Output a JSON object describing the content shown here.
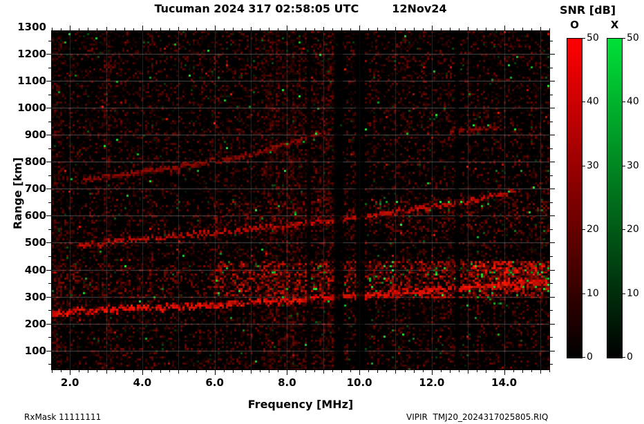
{
  "header": {
    "title_left": "Tucuman 2024 317 02:58:05 UTC",
    "title_right": "12Nov24"
  },
  "footer": {
    "left": "RxMask 11111111",
    "right": "VIPIR  TMJ20_2024317025805.RIQ"
  },
  "colorbars": {
    "title": "SNR [dB]",
    "ticks": [
      0,
      10,
      20,
      30,
      40,
      50
    ],
    "bars": [
      {
        "label": "O",
        "top_color": "#ff0000"
      },
      {
        "label": "X",
        "top_color": "#00e038"
      }
    ]
  },
  "chart_data": {
    "type": "heatmap",
    "title": "Tucuman 2024 317 02:58:05 UTC 12Nov24",
    "xlabel": "Frequency [MHz]",
    "ylabel": "Range [km]",
    "xlim": [
      1.5,
      15.25
    ],
    "ylim": [
      30,
      1285
    ],
    "x_major_ticks": [
      2,
      4,
      6,
      8,
      10,
      12,
      14
    ],
    "x_major_labels": [
      "2.0",
      "4.0",
      "6.0",
      "8.0",
      "10.0",
      "12.0",
      "14.0"
    ],
    "x_minor_step": 0.25,
    "y_major_ticks": [
      100,
      200,
      300,
      400,
      500,
      600,
      700,
      800,
      900,
      1000,
      1100,
      1200,
      1300
    ],
    "y_minor_step": 50,
    "snr_range": [
      0,
      50
    ],
    "background": "#000000",
    "grid": {
      "h_every": 100,
      "v_every": 1,
      "h_color": "rgba(215,215,215,0.35)",
      "v_color": "rgba(215,215,215,0.18)"
    },
    "noise": {
      "seed": 20241112,
      "cell": 3,
      "base_density": 0.3,
      "green_fraction": 0.035,
      "bright_dot_fraction": 0.004
    },
    "bright_columns": [
      [
        1.5,
        1.75
      ],
      [
        2.9,
        3.05
      ],
      [
        7.3,
        9.3
      ]
    ],
    "dark_columns": [
      [
        9.3,
        9.55
      ],
      [
        9.9,
        10.15
      ],
      [
        8.55,
        8.65
      ],
      [
        12.65,
        12.75
      ]
    ],
    "bands": [
      {
        "name": "f-spread-low-freq",
        "f": [
          1.6,
          6.0
        ],
        "range": [
          300,
          410
        ],
        "density": 0.15,
        "max_red": 110,
        "green_p": 0.012
      },
      {
        "name": "f-spread-high-freq",
        "f": [
          6.0,
          15.25
        ],
        "range": [
          300,
          428
        ],
        "density": 0.34,
        "max_red": 190,
        "green_p": 0.04
      },
      {
        "name": "second-hop-spread",
        "f": [
          6.0,
          15.25
        ],
        "range": [
          545,
          648
        ],
        "density": 0.14,
        "max_red": 115,
        "green_p": 0.025
      },
      {
        "name": "right-edge-strong-patch",
        "f": [
          13.1,
          15.25
        ],
        "range": [
          330,
          425
        ],
        "density": 0.5,
        "max_red": 255,
        "green_p": 0.1
      }
    ],
    "traces": [
      {
        "name": "first-echo",
        "points": [
          [
            1.55,
            240
          ],
          [
            3,
            250
          ],
          [
            5,
            262
          ],
          [
            7,
            275
          ],
          [
            8,
            283
          ],
          [
            9,
            292
          ],
          [
            10,
            301
          ],
          [
            11,
            311
          ],
          [
            12,
            321
          ],
          [
            13,
            332
          ],
          [
            14,
            343
          ],
          [
            15.2,
            356
          ]
        ],
        "strength": 1.0,
        "halo_km": 22,
        "green_p": 0.1,
        "green_f": [
          6.5,
          10.5
        ]
      },
      {
        "name": "second-echo",
        "points": [
          [
            2.2,
            487
          ],
          [
            3.5,
            505
          ],
          [
            5,
            523
          ],
          [
            6.5,
            541
          ],
          [
            8,
            560
          ],
          [
            9.5,
            582
          ],
          [
            11,
            610
          ],
          [
            12.5,
            640
          ],
          [
            13.5,
            663
          ],
          [
            14.3,
            688
          ]
        ],
        "strength": 0.75,
        "halo_km": 18,
        "green_p": 0.1,
        "green_f": [
          11.5,
          14.4
        ]
      },
      {
        "name": "third-echo",
        "points": [
          [
            2.4,
            733
          ],
          [
            3.5,
            752
          ],
          [
            5,
            778
          ],
          [
            6.2,
            803
          ],
          [
            7.2,
            830
          ],
          [
            8.0,
            862
          ],
          [
            8.7,
            893
          ],
          [
            9.1,
            908
          ]
        ],
        "strength": 0.45,
        "halo_km": 14,
        "green_p": 0.08,
        "green_f": [
          7.5,
          9.1
        ]
      },
      {
        "name": "high-faint-segment",
        "points": [
          [
            12.5,
            912
          ],
          [
            13.2,
            918
          ],
          [
            13.9,
            925
          ]
        ],
        "strength": 0.4,
        "halo_km": 8,
        "green_p": 0.05,
        "green_f": [
          13,
          14
        ]
      }
    ]
  }
}
